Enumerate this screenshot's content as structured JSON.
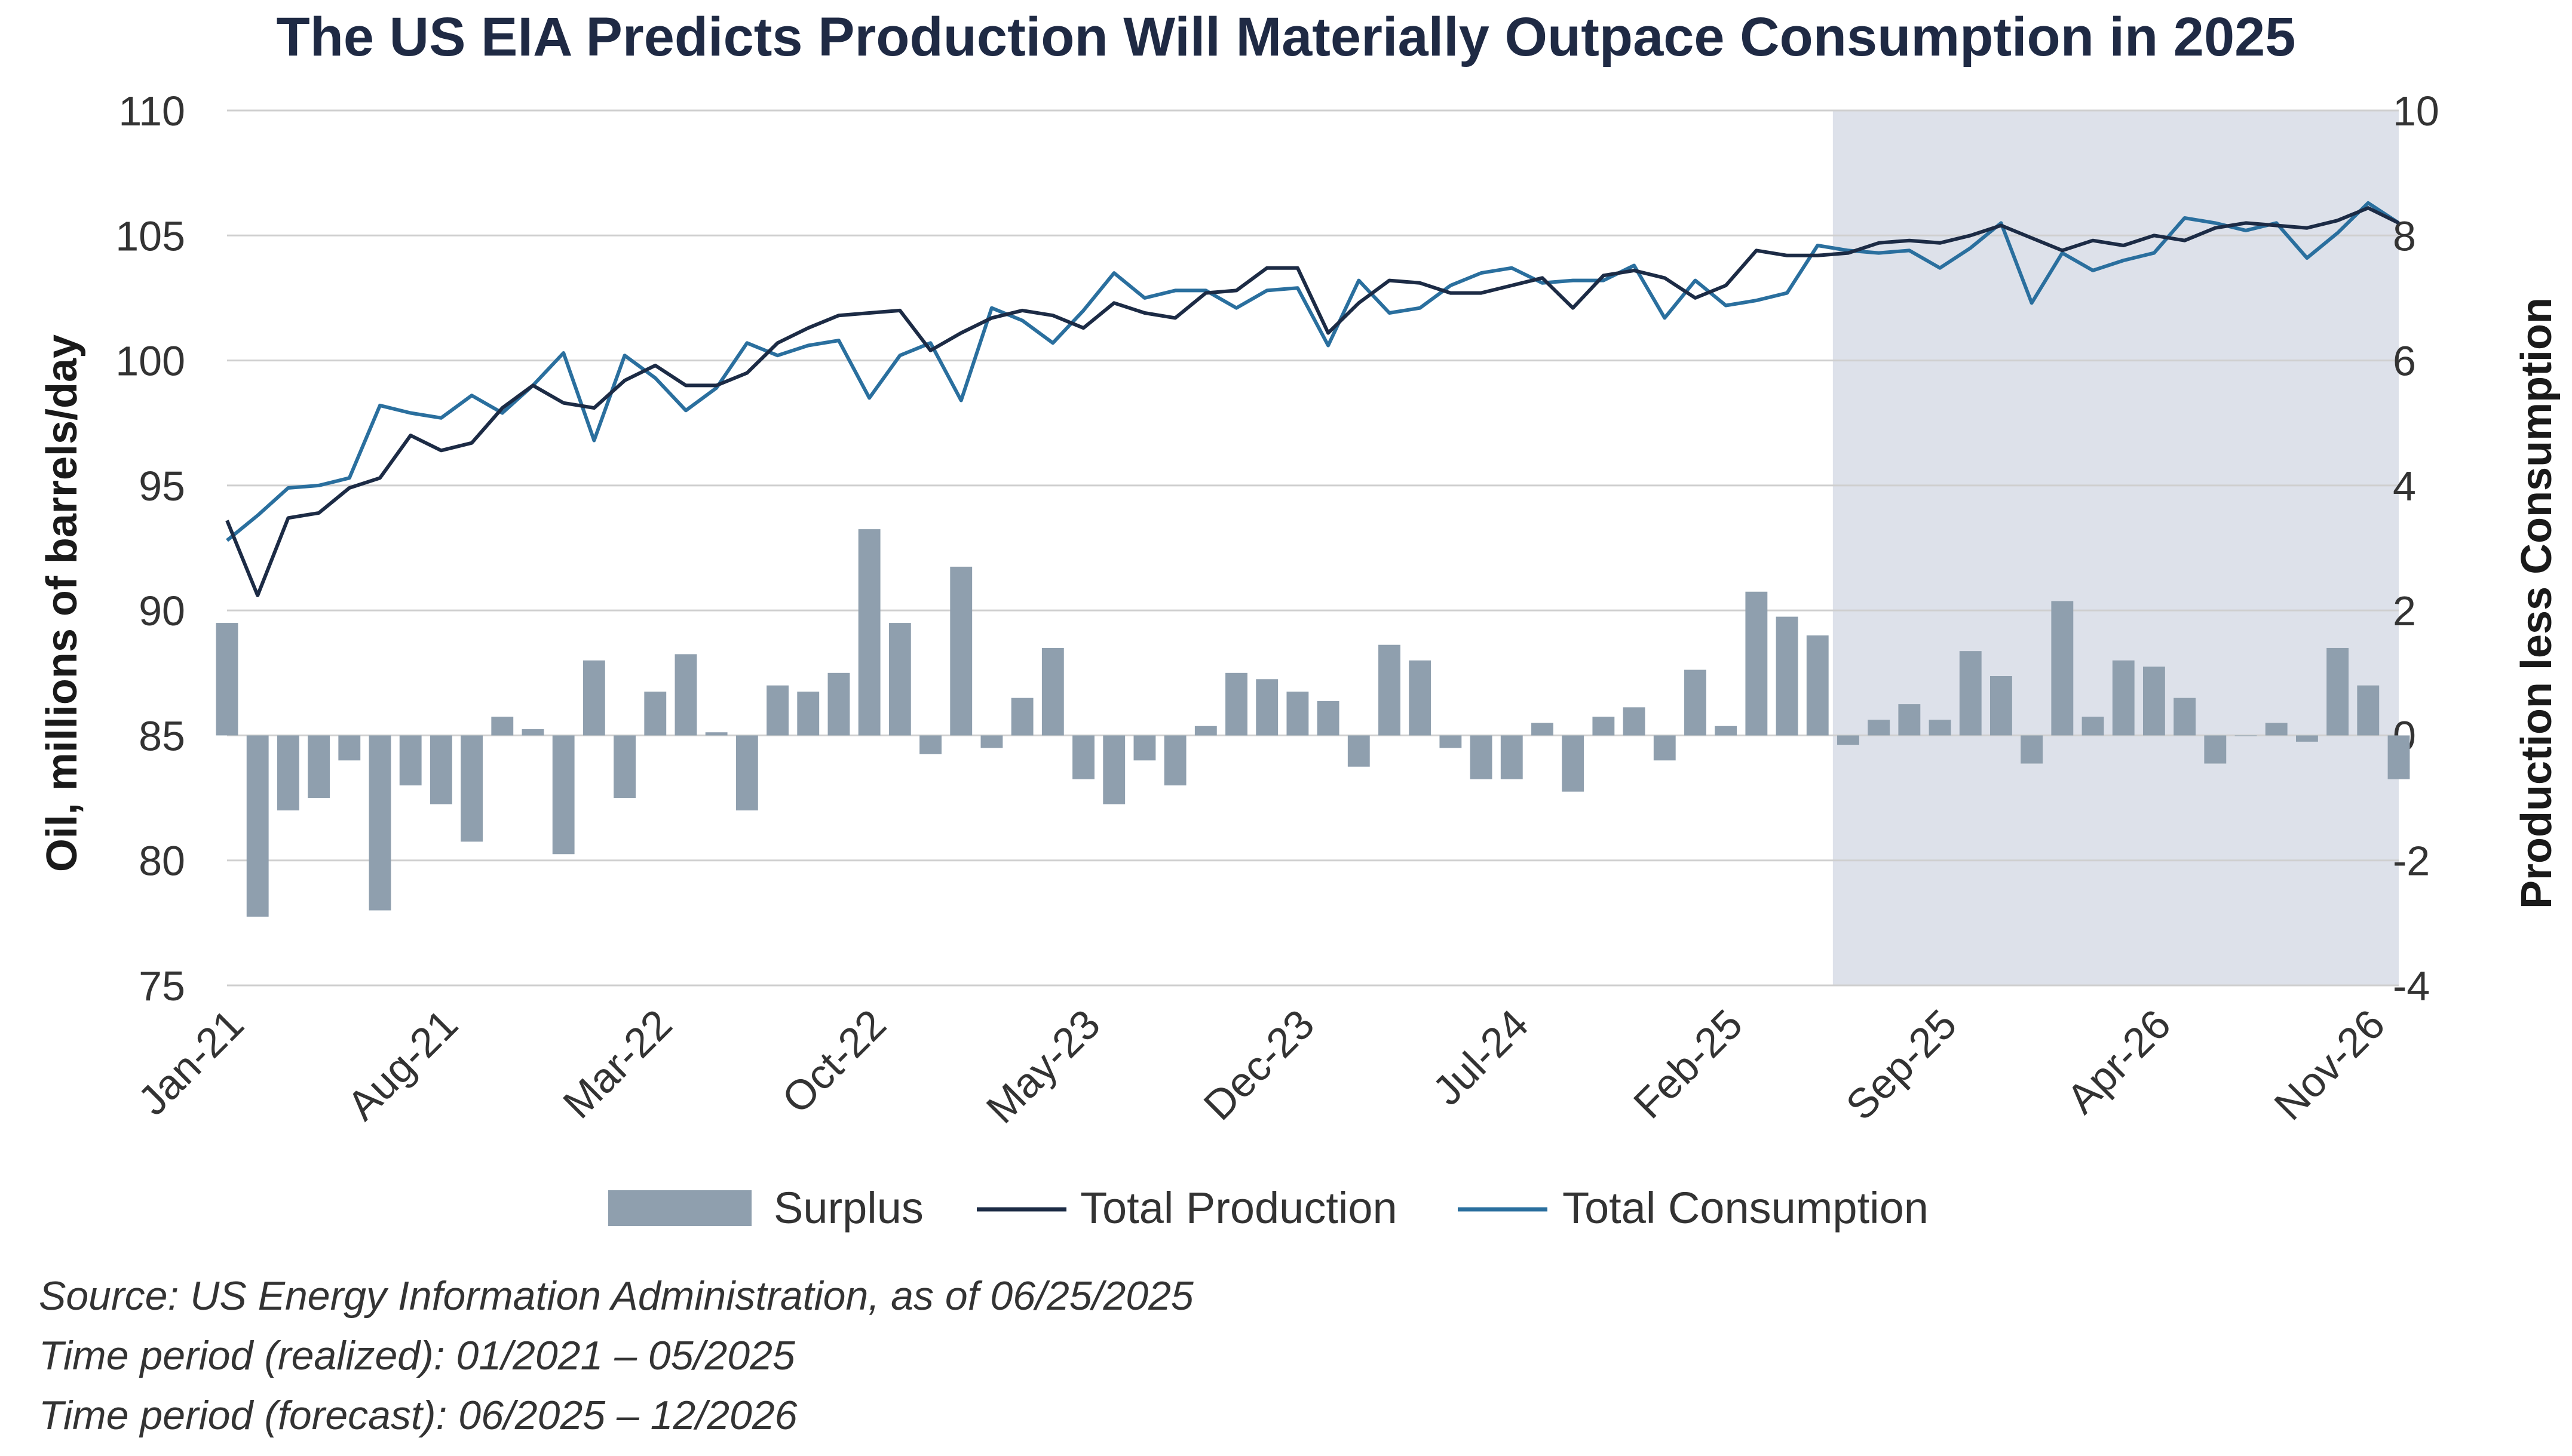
{
  "title": "The US EIA Predicts Production Will Materially Outpace Consumption in 2025",
  "notes": {
    "source": "Source: US Energy Information Administration, as of 06/25/2025",
    "realized": "Time period (realized): 01/2021 – 05/2025",
    "forecast": "Time period (forecast): 06/2025 – 12/2026"
  },
  "colors": {
    "surplus": "#8f9fae",
    "production": "#1c2b45",
    "consumption": "#2a6f9e",
    "forecast_shade": "#dde1ea",
    "grid": "#cfcfcf"
  },
  "chart_data": {
    "type": "bar+line",
    "ylabel": "Oil, millions of barrels/day",
    "y2label": "Production less Consumption",
    "ylim": [
      75,
      110
    ],
    "y2lim": [
      -4,
      10
    ],
    "yticks": [
      75,
      80,
      85,
      90,
      95,
      100,
      105,
      110
    ],
    "y2ticks": [
      -4,
      -2,
      0,
      2,
      4,
      6,
      8,
      10
    ],
    "xtick_labels": [
      "Jan-21",
      "Aug-21",
      "Mar-22",
      "Oct-22",
      "May-23",
      "Dec-23",
      "Jul-24",
      "Feb-25",
      "Sep-25",
      "Apr-26",
      "Nov-26"
    ],
    "xtick_index": [
      0,
      7,
      14,
      21,
      28,
      35,
      42,
      49,
      56,
      63,
      70
    ],
    "forecast_start_index": 53,
    "forecast_end_index": 71,
    "legend": [
      "Surplus",
      "Total Production",
      "Total Consumption"
    ],
    "series": [
      {
        "name": "Total Production",
        "axis": "left",
        "values": [
          93.6,
          90.6,
          93.7,
          93.9,
          94.9,
          95.3,
          97.0,
          96.4,
          96.7,
          98.1,
          99.0,
          98.3,
          98.1,
          99.2,
          99.8,
          99.0,
          99.0,
          99.5,
          100.7,
          101.3,
          101.8,
          101.9,
          102.0,
          100.4,
          101.1,
          101.7,
          102.0,
          101.8,
          101.3,
          102.3,
          101.9,
          101.7,
          102.7,
          102.8,
          103.7,
          103.7,
          101.1,
          102.3,
          103.2,
          103.1,
          102.7,
          102.7,
          103.0,
          103.3,
          102.1,
          103.4,
          103.6,
          103.3,
          102.5,
          103.0,
          104.4,
          104.2,
          104.2,
          104.3,
          104.7,
          104.8,
          104.7,
          105.0,
          105.4,
          104.9,
          104.4,
          104.8,
          104.6,
          105.0,
          104.8,
          105.3,
          105.5,
          105.4,
          105.3,
          105.6,
          106.1,
          105.5
        ]
      },
      {
        "name": "Total Consumption",
        "axis": "left",
        "values": [
          92.8,
          93.8,
          94.9,
          95.0,
          95.3,
          98.2,
          97.9,
          97.7,
          98.6,
          97.9,
          99.0,
          100.3,
          96.8,
          100.2,
          99.3,
          98.0,
          98.9,
          100.7,
          100.2,
          100.6,
          100.8,
          98.5,
          100.2,
          100.7,
          98.4,
          102.1,
          101.6,
          100.7,
          102.0,
          103.5,
          102.5,
          102.8,
          102.8,
          102.1,
          102.8,
          102.9,
          100.6,
          103.2,
          101.9,
          102.1,
          103.0,
          103.5,
          103.7,
          103.1,
          103.2,
          103.2,
          103.8,
          101.7,
          103.2,
          102.2,
          102.4,
          102.7,
          104.6,
          104.4,
          104.3,
          104.4,
          103.7,
          104.5,
          105.5,
          102.3,
          104.3,
          103.6,
          104.0,
          104.3,
          105.7,
          105.5,
          105.2,
          105.5,
          104.1,
          105.1,
          106.3,
          105.5
        ]
      },
      {
        "name": "Surplus",
        "axis": "right",
        "type": "bar",
        "values": [
          1.8,
          -2.9,
          -1.2,
          -1.0,
          -0.4,
          -2.8,
          -0.8,
          -1.1,
          -1.7,
          0.3,
          0.1,
          -1.9,
          1.2,
          -1.0,
          0.7,
          1.3,
          0.05,
          -1.2,
          0.8,
          0.7,
          1.0,
          3.3,
          1.8,
          -0.3,
          2.7,
          -0.2,
          0.6,
          1.4,
          -0.7,
          -1.1,
          -0.4,
          -0.8,
          0.15,
          1.0,
          0.9,
          0.7,
          0.55,
          -0.5,
          1.45,
          1.2,
          -0.2,
          -0.7,
          -0.7,
          0.2,
          -0.9,
          0.3,
          0.45,
          -0.4,
          1.05,
          0.15,
          2.3,
          1.9,
          1.6,
          -0.15,
          0.25,
          0.5,
          0.25,
          1.35,
          0.95,
          -0.45,
          2.15,
          0.3,
          1.2,
          1.1,
          0.6,
          -0.45,
          0.0,
          0.2,
          -0.1,
          1.4,
          0.8,
          -0.7
        ]
      }
    ]
  }
}
